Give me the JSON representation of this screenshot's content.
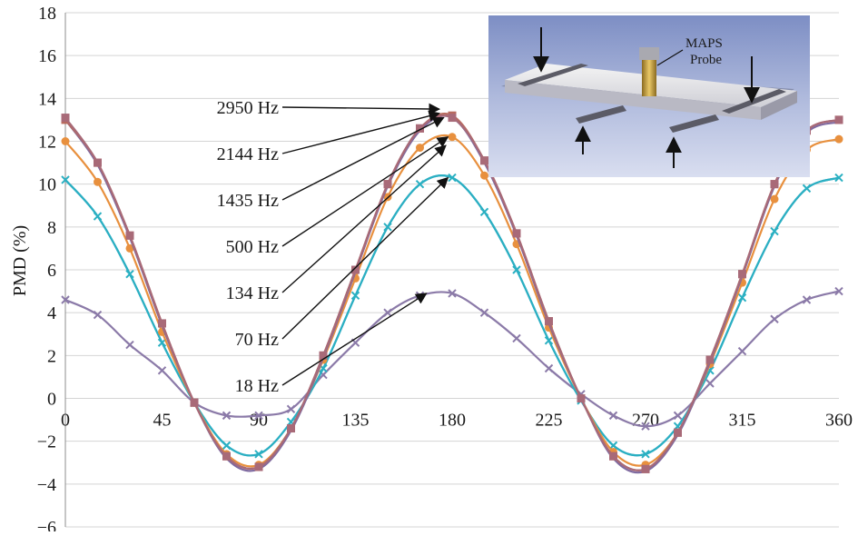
{
  "chart_data": {
    "type": "line",
    "title": "",
    "xlabel": "",
    "ylabel": "PMD (%)",
    "xlim": [
      0,
      360
    ],
    "ylim": [
      -6,
      18
    ],
    "x_ticks": [
      "0",
      "45",
      "90",
      "135",
      "180",
      "225",
      "270",
      "315",
      "360"
    ],
    "y_ticks": [
      "18",
      "16",
      "14",
      "12",
      "10",
      "8",
      "6",
      "4",
      "2",
      "0",
      "−2",
      "−4",
      "−6"
    ],
    "grid": "horizontal",
    "x": [
      0,
      15,
      30,
      45,
      60,
      75,
      90,
      105,
      120,
      135,
      150,
      165,
      180,
      195,
      210,
      225,
      240,
      255,
      270,
      285,
      300,
      315,
      330,
      345,
      360
    ],
    "series": [
      {
        "label": "2950 Hz",
        "color": "#a86a78",
        "marker": "square",
        "values": [
          13.1,
          11.0,
          7.6,
          3.5,
          -0.2,
          -2.7,
          -3.2,
          -1.4,
          2.0,
          6.0,
          10.0,
          12.6,
          13.1,
          11.1,
          7.7,
          3.6,
          0.0,
          -2.7,
          -3.3,
          -1.6,
          1.8,
          5.8,
          10.0,
          12.5,
          13.0
        ]
      },
      {
        "label": "2144 Hz",
        "color": "#7f6aa0",
        "marker": "none",
        "values": [
          13.0,
          10.9,
          7.5,
          3.4,
          -0.2,
          -2.8,
          -3.3,
          -1.5,
          1.9,
          5.9,
          9.9,
          12.5,
          13.1,
          11.0,
          7.6,
          3.5,
          0.0,
          -2.8,
          -3.4,
          -1.7,
          1.7,
          5.7,
          9.9,
          12.4,
          12.9
        ]
      },
      {
        "label": "1435 Hz",
        "color": "#b86a5e",
        "marker": "square",
        "values": [
          13.0,
          11.0,
          7.6,
          3.5,
          -0.2,
          -2.7,
          -3.2,
          -1.4,
          2.0,
          6.0,
          10.0,
          12.6,
          13.2,
          11.1,
          7.7,
          3.6,
          0.0,
          -2.7,
          -3.3,
          -1.6,
          1.8,
          5.8,
          10.0,
          12.5,
          13.0
        ]
      },
      {
        "label": "500 Hz",
        "color": "#e8903e",
        "marker": "circle",
        "values": [
          12.0,
          10.1,
          7.0,
          3.1,
          -0.2,
          -2.6,
          -3.1,
          -1.4,
          1.8,
          5.6,
          9.4,
          11.7,
          12.2,
          10.4,
          7.2,
          3.3,
          0.0,
          -2.5,
          -3.1,
          -1.6,
          1.6,
          5.4,
          9.3,
          11.6,
          12.1
        ]
      },
      {
        "label": "134 Hz",
        "color": "#2ab0c2",
        "marker": "x",
        "values": [
          10.2,
          8.5,
          5.8,
          2.6,
          -0.2,
          -2.2,
          -2.6,
          -1.1,
          1.4,
          4.8,
          8.0,
          10.0,
          10.3,
          8.7,
          6.0,
          2.7,
          -0.1,
          -2.2,
          -2.6,
          -1.3,
          1.3,
          4.7,
          7.8,
          9.8,
          10.3
        ]
      },
      {
        "label": "70 Hz",
        "color": "#5a9ad0",
        "marker": "none",
        "values": [
          10.2,
          8.5,
          5.8,
          2.6,
          -0.2,
          -2.2,
          -2.6,
          -1.1,
          1.4,
          4.8,
          8.0,
          10.0,
          10.3,
          8.7,
          6.0,
          2.7,
          -0.1,
          -2.2,
          -2.6,
          -1.3,
          1.3,
          4.7,
          7.8,
          9.8,
          10.3
        ]
      },
      {
        "label": "18 Hz",
        "color": "#8b7aa8",
        "marker": "x",
        "values": [
          4.6,
          3.9,
          2.5,
          1.3,
          -0.2,
          -0.8,
          -0.8,
          -0.5,
          1.1,
          2.6,
          4.0,
          4.8,
          4.9,
          4.0,
          2.8,
          1.4,
          0.2,
          -0.8,
          -1.3,
          -0.8,
          0.7,
          2.2,
          3.7,
          4.6,
          5.0
        ]
      }
    ],
    "annotations": [
      {
        "text": "2950 Hz",
        "target_x": 174,
        "target_y": 13.5
      },
      {
        "text": "2144 Hz",
        "target_x": 174,
        "target_y": 13.3
      },
      {
        "text": "1435 Hz",
        "target_x": 176,
        "target_y": 13.1
      },
      {
        "text": "500 Hz",
        "target_x": 178,
        "target_y": 12.2
      },
      {
        "text": "134 Hz",
        "target_x": 177,
        "target_y": 11.8
      },
      {
        "text": "70 Hz",
        "target_x": 178,
        "target_y": 10.3
      },
      {
        "text": "18 Hz",
        "target_x": 168,
        "target_y": 4.9
      }
    ]
  },
  "inset": {
    "label_line1": "MAPS",
    "label_line2": "Probe"
  }
}
